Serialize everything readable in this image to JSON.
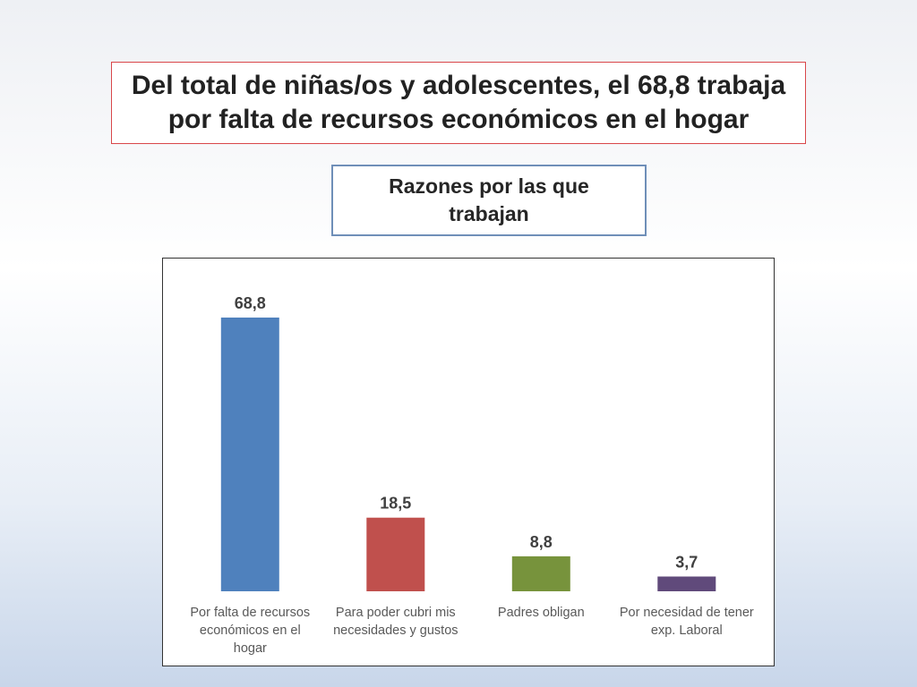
{
  "page": {
    "title": "Del total de niñas/os y adolescentes, el 68,8 trabaja por falta de recursos económicos en el hogar",
    "subtitle": "Razones por las que trabajan"
  },
  "chart_data": {
    "type": "bar",
    "title": "",
    "xlabel": "",
    "ylabel": "",
    "ylim": [
      0,
      68.8
    ],
    "grid": false,
    "legend": "none",
    "categories": [
      "Por falta de recursos económicos en el hogar",
      "Para poder cubri mis necesidades y gustos",
      "Padres obligan",
      "Por necesidad de tener exp. Laboral"
    ],
    "category_lines": [
      [
        "Por falta de recursos",
        "económicos en el",
        "hogar"
      ],
      [
        "Para poder cubri mis",
        "necesidades y gustos"
      ],
      [
        "Padres obligan"
      ],
      [
        "Por necesidad de tener",
        "exp. Laboral"
      ]
    ],
    "values": [
      68.8,
      18.5,
      8.8,
      3.7
    ],
    "value_labels": [
      "68,8",
      "18,5",
      "8,8",
      "3,7"
    ],
    "colors": [
      "#4f81bd",
      "#c0504d",
      "#77933c",
      "#604a7b"
    ],
    "label_color": "#595959",
    "value_label_color": "#404040"
  }
}
